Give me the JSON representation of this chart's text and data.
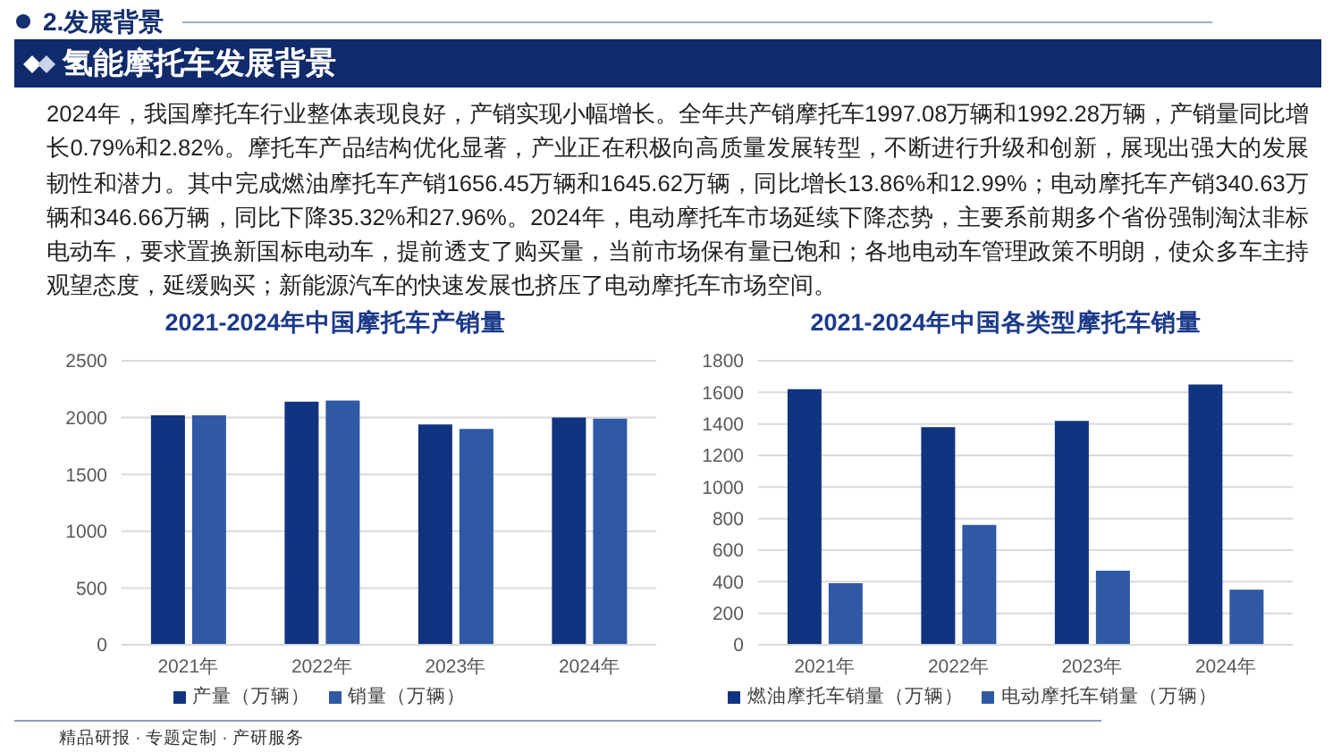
{
  "chart_data": [
    {
      "type": "other",
      "subtitle": "2.发展背景",
      "title": "氢能摩托车发展背景",
      "annotations": [
        "2024年，我国摩托车行业整体表现良好，产销实现小幅增长。全年共产销摩托车1997.08万辆和1992.28万辆，产销量同比增长0.79%和2.82%。摩托车产品结构优化显著，产业正在积极向高质量发展转型，不断进行升级和创新，展现出强大的发展韧性和潜力。其中完成燃油摩托车产销1656.45万辆和1645.62万辆，同比增长13.86%和12.99%；电动摩托车产销340.63万辆和346.66万辆，同比下降35.32%和27.96%。2024年，电动摩托车市场延续下降态势，主要系前期多个省份强制淘汰非标电动车，要求置换新国标电动车，提前透支了购买量，当前市场保有量已饱和；各地电动车管理政策不明朗，使众多车主持观望态度，延缓购买；新能源汽车的快速发展也挤压了电动摩托车市场空间。",
        "精品研报 · 专题定制 · 产研服务"
      ]
    },
    {
      "type": "bar",
      "title": "2021-2024年中国摩托车产销量",
      "categories": [
        "2021年",
        "2022年",
        "2023年",
        "2024年"
      ],
      "series": [
        {
          "name": "产量（万辆）",
          "color": "#10347f",
          "values": [
            2020,
            2140,
            1940,
            2000
          ]
        },
        {
          "name": "销量（万辆）",
          "color": "#2f58a5",
          "values": [
            2020,
            2150,
            1900,
            1990
          ]
        }
      ],
      "ylim": [
        0,
        2500
      ],
      "yticks": [
        0,
        500,
        1000,
        1500,
        2000,
        2500
      ],
      "grid": "y",
      "legend": "bottom"
    },
    {
      "type": "bar",
      "title": "2021-2024年中国各类型摩托车销量",
      "categories": [
        "2021年",
        "2022年",
        "2023年",
        "2024年"
      ],
      "series": [
        {
          "name": "燃油摩托车销量（万辆）",
          "color": "#10347f",
          "values": [
            1620,
            1380,
            1420,
            1650
          ]
        },
        {
          "name": "电动摩托车销量（万辆）",
          "color": "#2f58a5",
          "values": [
            390,
            760,
            470,
            350
          ]
        }
      ],
      "ylim": [
        0,
        1800
      ],
      "yticks": [
        0,
        200,
        400,
        600,
        800,
        1000,
        1200,
        1400,
        1600,
        1800
      ],
      "grid": "y",
      "legend": "bottom"
    }
  ]
}
